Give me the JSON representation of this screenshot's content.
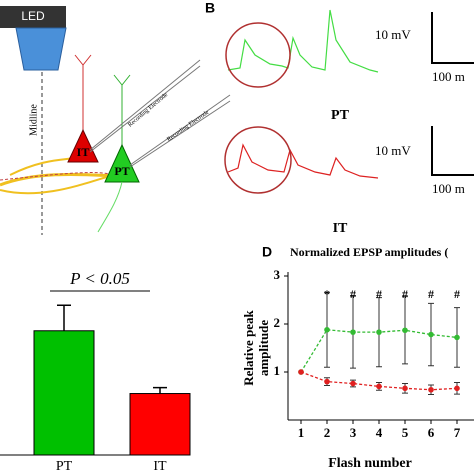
{
  "panel_a": {
    "led": "LED",
    "midline": "Midline",
    "it": "IT",
    "pt": "PT",
    "electrode_1": "Recording Electrode",
    "electrode_2": "Recording Electrode"
  },
  "panel_b": {
    "label": "B",
    "scale_mv_1": "10 mV",
    "scale_ms_1": "100 m",
    "trace_1": "PT",
    "scale_mv_2": "10 mV",
    "scale_ms_2": "100 m",
    "trace_2": "IT"
  },
  "chart_data": [
    {
      "type": "bar",
      "annotation": "P < 0.05",
      "categories": [
        "PT",
        "IT"
      ],
      "values": [
        1.9,
        0.94
      ],
      "errors": [
        0.39,
        0.09
      ],
      "colors": [
        "#00c000",
        "#ff0000"
      ],
      "ylim": [
        0,
        2.6
      ]
    },
    {
      "type": "line",
      "label": "D",
      "title": "Normalized EPSP amplitudes (",
      "y_label": [
        "Relative peak",
        "amplitude"
      ],
      "x_label": "Flash number",
      "x": [
        1,
        2,
        3,
        4,
        5,
        6,
        7
      ],
      "series": [
        {
          "color": "#33bb33",
          "values": [
            1,
            1.88,
            1.83,
            1.83,
            1.87,
            1.78,
            1.72
          ],
          "errors": [
            0,
            0.78,
            0.75,
            0.72,
            0.7,
            0.65,
            0.62
          ]
        },
        {
          "color": "#e02020",
          "values": [
            1,
            0.8,
            0.76,
            0.7,
            0.66,
            0.63,
            0.66
          ],
          "errors": [
            0,
            0.08,
            0.07,
            0.08,
            0.1,
            0.1,
            0.12
          ]
        }
      ],
      "annotations": [
        {
          "x": 2,
          "text": "*"
        },
        {
          "x": 3,
          "text": "#"
        },
        {
          "x": 4,
          "text": "#"
        },
        {
          "x": 5,
          "text": "#"
        },
        {
          "x": 6,
          "text": "#"
        },
        {
          "x": 7,
          "text": "#"
        }
      ],
      "xlim": [
        0.5,
        7.7
      ],
      "ylim": [
        0,
        3
      ],
      "xticks": [
        1,
        2,
        3,
        4,
        5,
        6,
        7
      ],
      "yticks": [
        1,
        2,
        3
      ]
    }
  ]
}
